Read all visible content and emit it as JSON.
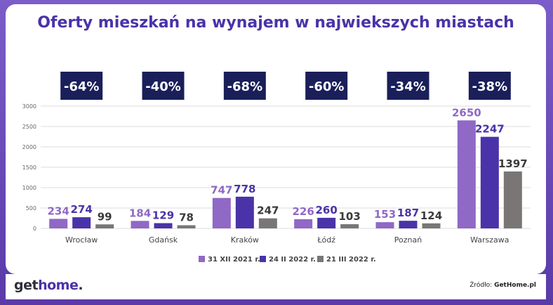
{
  "title": "Oferty mieszkań na wynajem w najwiekszych miastach",
  "source": {
    "prefix": "Źródło: ",
    "name": "GetHome.pl"
  },
  "logo": {
    "part1": "get",
    "part2": "home",
    "dot": "."
  },
  "chart_data": {
    "type": "bar",
    "title": "Oferty mieszkań na wynajem w najwiekszych miastach",
    "categories": [
      "Wrocław",
      "Gdańsk",
      "Kraków",
      "Łódź",
      "Poznań",
      "Warszawa"
    ],
    "series": [
      {
        "name": "31 XII 2021 r.",
        "color": "#9068c6",
        "values": [
          234,
          184,
          747,
          226,
          153,
          2650
        ]
      },
      {
        "name": "24 II 2022 r.",
        "color": "#4a33a8",
        "values": [
          274,
          129,
          778,
          260,
          187,
          2247
        ]
      },
      {
        "name": "21 III 2022 r.",
        "color": "#7a7676",
        "values": [
          99,
          78,
          247,
          103,
          124,
          1397
        ]
      }
    ],
    "changes": [
      "-64%",
      "-40%",
      "-68%",
      "-60%",
      "-34%",
      "-38%"
    ],
    "ylim": [
      0,
      3000
    ],
    "yticks": [
      0,
      500,
      1000,
      1500,
      2000,
      2500,
      3000
    ],
    "grid": true,
    "legend_position": "bottom"
  },
  "colors": {
    "badge": "#1a1f5a",
    "grid": "#dddddd",
    "title": "#4a33a8"
  }
}
